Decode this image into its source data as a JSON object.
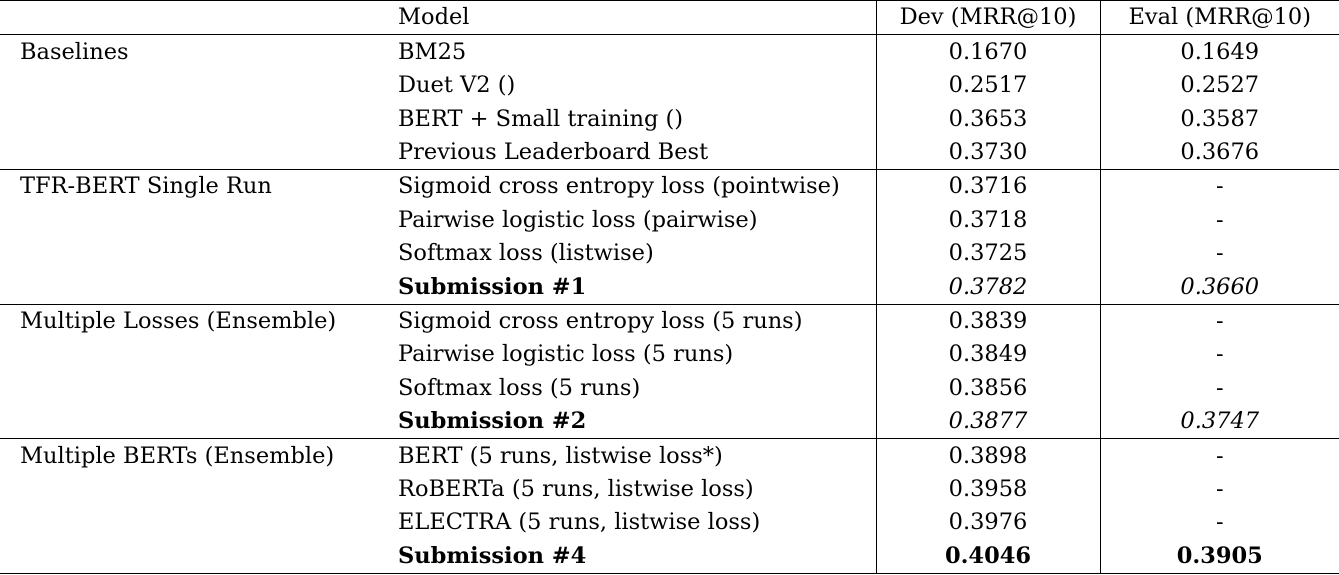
{
  "header": {
    "group": "",
    "model": "Model",
    "dev": "Dev (MRR@10)",
    "eval": "Eval (MRR@10)"
  },
  "groups": [
    {
      "name": "Baselines",
      "rows": [
        {
          "model": "BM25",
          "dev": "0.1670",
          "eval": "0.1649"
        },
        {
          "model": "Duet V2 ()",
          "dev": "0.2517",
          "eval": "0.2527"
        },
        {
          "model": "BERT + Small training ()",
          "dev": "0.3653",
          "eval": "0.3587"
        },
        {
          "model": "Previous Leaderboard Best",
          "dev": "0.3730",
          "eval": "0.3676"
        }
      ]
    },
    {
      "name": "TFR-BERT Single Run",
      "rows": [
        {
          "model": "Sigmoid cross entropy loss (pointwise)",
          "dev": "0.3716",
          "eval": "-"
        },
        {
          "model": "Pairwise logistic loss (pairwise)",
          "dev": "0.3718",
          "eval": "-"
        },
        {
          "model": "Softmax loss (listwise)",
          "dev": "0.3725",
          "eval": "-"
        },
        {
          "model": "Submission #1",
          "dev": "0.3782",
          "eval": "0.3660"
        }
      ]
    },
    {
      "name": "Multiple Losses (Ensemble)",
      "rows": [
        {
          "model": "Sigmoid cross entropy loss (5 runs)",
          "dev": "0.3839",
          "eval": "-"
        },
        {
          "model": "Pairwise logistic loss (5 runs)",
          "dev": "0.3849",
          "eval": "-"
        },
        {
          "model": "Softmax loss (5 runs)",
          "dev": "0.3856",
          "eval": "-"
        },
        {
          "model": "Submission #2",
          "dev": "0.3877",
          "eval": "0.3747"
        }
      ]
    },
    {
      "name": "Multiple BERTs (Ensemble)",
      "rows": [
        {
          "model": "BERT (5 runs, listwise loss*)",
          "dev": "0.3898",
          "eval": "-"
        },
        {
          "model": "RoBERTa (5 runs, listwise loss)",
          "dev": "0.3958",
          "eval": "-"
        },
        {
          "model": "ELECTRA (5 runs, listwise loss)",
          "dev": "0.3976",
          "eval": "-"
        },
        {
          "model": "Submission #4",
          "dev": "0.4046",
          "eval": "0.3905"
        }
      ]
    }
  ]
}
